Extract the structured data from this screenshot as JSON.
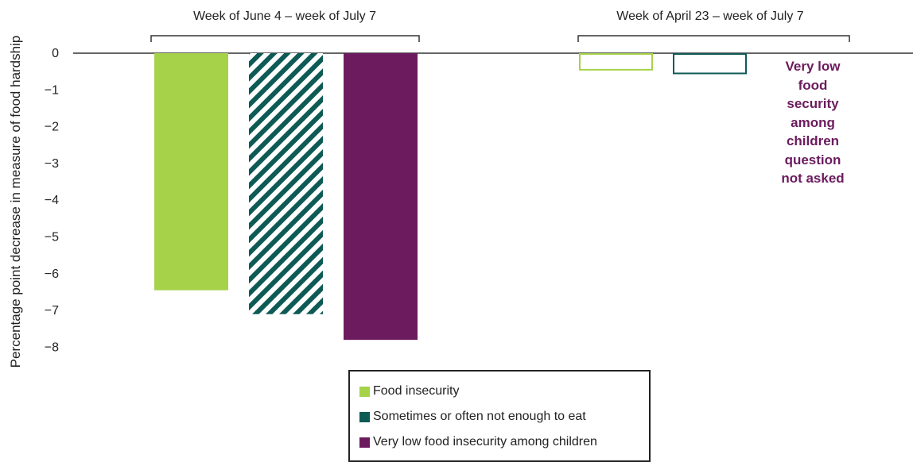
{
  "chart_data": {
    "type": "bar",
    "ylabel": "Percentage point decrease in measure of food hardship",
    "ylim": [
      -8,
      0
    ],
    "yticks": [
      "0",
      "−1",
      "−2",
      "−3",
      "−4",
      "−5",
      "−6",
      "−7",
      "−8"
    ],
    "groups": [
      {
        "label": "Week of June 4 – week of July 7",
        "bars": [
          {
            "series": "Food insecurity",
            "value": -6.45
          },
          {
            "series": "Sometimes or often not enough to eat",
            "value": -7.1
          },
          {
            "series": "Very low food insecurity among children",
            "value": -7.8
          }
        ]
      },
      {
        "label": "Week of April 23 – week of July 7",
        "bars": [
          {
            "series": "Food insecurity",
            "value": -0.45
          },
          {
            "series": "Sometimes or often not enough to eat",
            "value": -0.55
          }
        ],
        "note": [
          "Very low",
          "food",
          "security",
          "among",
          "children",
          "question",
          "not asked"
        ]
      }
    ],
    "legend": {
      "placement": "bottom-center",
      "items": [
        {
          "label": "Food insecurity",
          "color": "#a6d24a"
        },
        {
          "label": "Sometimes or often not enough to eat",
          "color": "#0e5a55"
        },
        {
          "label": "Very low food insecurity among children",
          "color": "#6b1b5e"
        }
      ]
    },
    "styles": {
      "group1": "solid fill; second bar striped (hatched)",
      "group2": "outlined (hollow) bars"
    }
  }
}
